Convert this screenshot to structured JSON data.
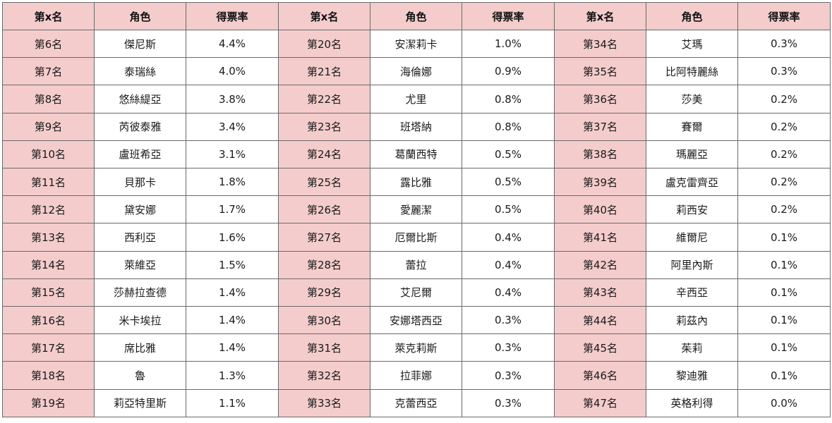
{
  "headers": [
    "第x名",
    "角色",
    "得票率",
    "第x名",
    "角色",
    "得票率",
    "第x名",
    "角色",
    "得票率"
  ],
  "rows": [
    [
      "第6名",
      "傑尼斯",
      "4.4%",
      "第20名",
      "安潔莉卡",
      "1.0%",
      "第34名",
      "艾瑪",
      "0.3%"
    ],
    [
      "第7名",
      "泰瑞絲",
      "4.0%",
      "第21名",
      "海倫娜",
      "0.9%",
      "第35名",
      "比阿特麗絲",
      "0.3%"
    ],
    [
      "第8名",
      "悠絲緹亞",
      "3.8%",
      "第22名",
      "尤里",
      "0.8%",
      "第36名",
      "莎美",
      "0.2%"
    ],
    [
      "第9名",
      "芮彼泰雅",
      "3.4%",
      "第23名",
      "班塔納",
      "0.8%",
      "第37名",
      "賽爾",
      "0.2%"
    ],
    [
      "第10名",
      "盧班希亞",
      "3.1%",
      "第24名",
      "葛蘭西特",
      "0.5%",
      "第38名",
      "瑪麗亞",
      "0.2%"
    ],
    [
      "第11名",
      "貝那卡",
      "1.8%",
      "第25名",
      "露比雅",
      "0.5%",
      "第39名",
      "盧克雷齊亞",
      "0.2%"
    ],
    [
      "第12名",
      "黛安娜",
      "1.7%",
      "第26名",
      "愛麗潔",
      "0.5%",
      "第40名",
      "莉西安",
      "0.2%"
    ],
    [
      "第13名",
      "西利亞",
      "1.6%",
      "第27名",
      "厄爾比斯",
      "0.4%",
      "第41名",
      "維爾尼",
      "0.1%"
    ],
    [
      "第14名",
      "萊維亞",
      "1.5%",
      "第28名",
      "蕾拉",
      "0.4%",
      "第42名",
      "阿里內斯",
      "0.1%"
    ],
    [
      "第15名",
      "莎赫拉查德",
      "1.4%",
      "第29名",
      "艾尼爾",
      "0.4%",
      "第43名",
      "辛西亞",
      "0.1%"
    ],
    [
      "第16名",
      "米卡埃拉",
      "1.4%",
      "第30名",
      "安娜塔西亞",
      "0.3%",
      "第44名",
      "莉茲內",
      "0.1%"
    ],
    [
      "第17名",
      "席比雅",
      "1.4%",
      "第31名",
      "萊克莉斯",
      "0.3%",
      "第45名",
      "茱莉",
      "0.1%"
    ],
    [
      "第18名",
      "魯",
      "1.3%",
      "第32名",
      "拉菲娜",
      "0.3%",
      "第46名",
      "黎迪雅",
      "0.1%"
    ],
    [
      "第19名",
      "莉亞特里斯",
      "1.1%",
      "第33名",
      "克蕾西亞",
      "0.3%",
      "第47名",
      "英格利得",
      "0.0%"
    ]
  ],
  "colors": {
    "header_bg": "#f4cccc",
    "rank_bg": "#f4cccc",
    "cell_bg": "#ffffff",
    "border": "#6a6a6a"
  }
}
